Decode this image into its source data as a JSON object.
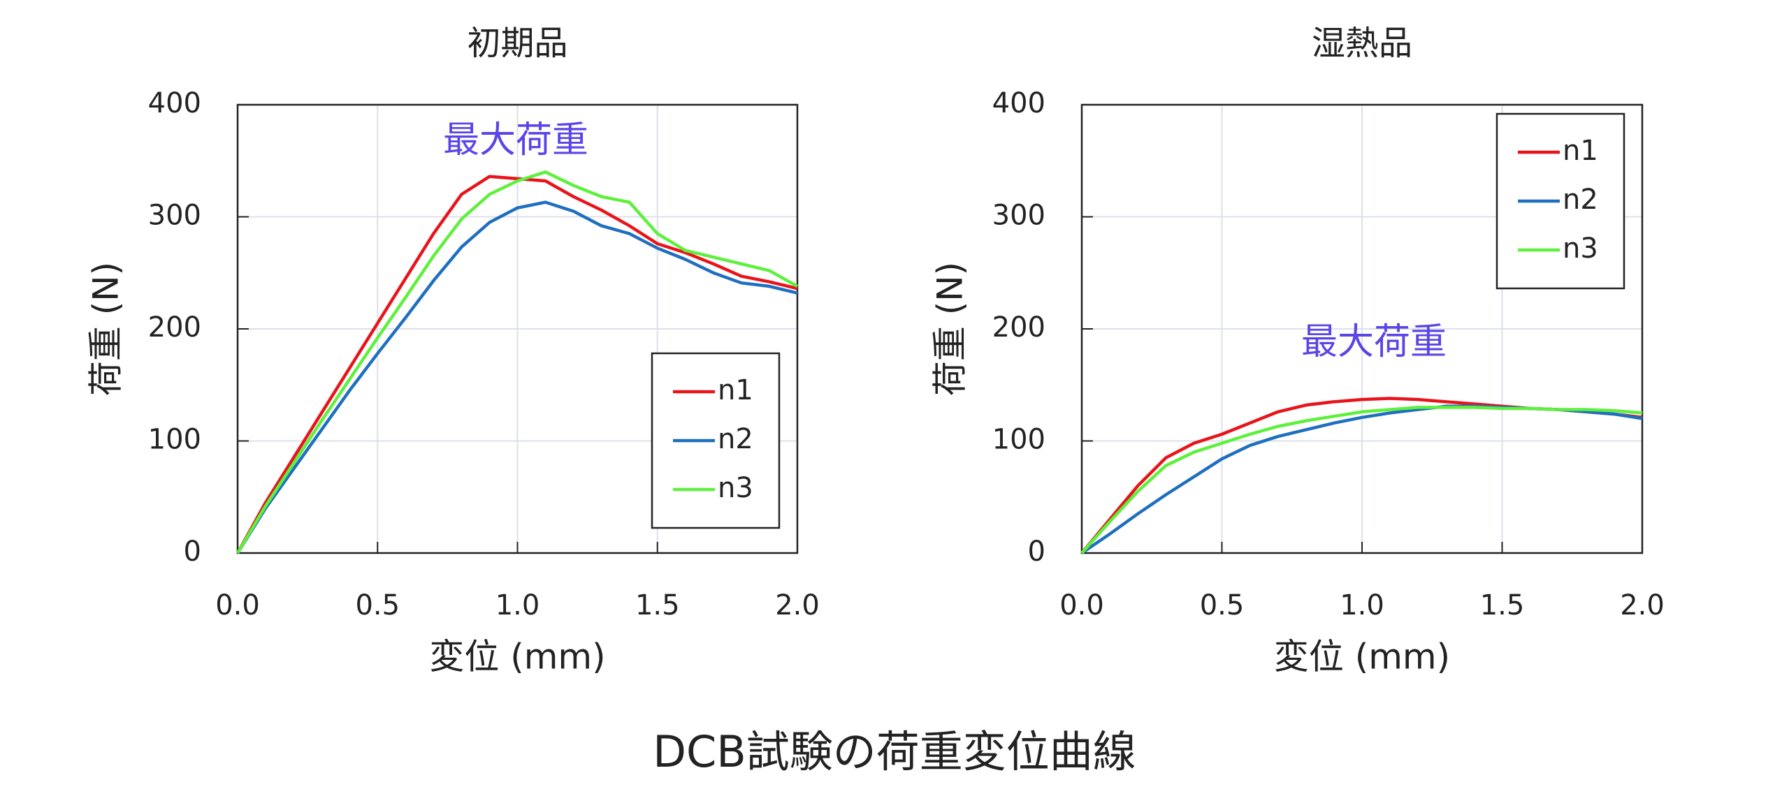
{
  "caption": "DCB試験の荷重変位曲線",
  "chart_data": [
    {
      "type": "line",
      "title": "初期品",
      "xlabel": "変位 (mm)",
      "ylabel": "荷重 (N)",
      "annotation": "最大荷重",
      "x": [
        0,
        0.1,
        0.2,
        0.3,
        0.4,
        0.5,
        0.6,
        0.7,
        0.8,
        0.9,
        1.0,
        1.1,
        1.2,
        1.3,
        1.4,
        1.5,
        1.6,
        1.7,
        1.8,
        1.9,
        2.0
      ],
      "series": [
        {
          "name": "n1",
          "color": "#e8141a",
          "values": [
            0,
            45,
            85,
            125,
            165,
            205,
            245,
            285,
            320,
            336,
            334,
            332,
            318,
            306,
            292,
            276,
            268,
            258,
            247,
            242,
            236
          ]
        },
        {
          "name": "n2",
          "color": "#1f6fc0",
          "values": [
            0,
            40,
            75,
            110,
            145,
            178,
            210,
            243,
            273,
            295,
            308,
            313,
            305,
            292,
            285,
            272,
            262,
            250,
            241,
            238,
            232
          ]
        },
        {
          "name": "n3",
          "color": "#5ef03c",
          "values": [
            0,
            42,
            80,
            118,
            155,
            192,
            228,
            265,
            298,
            320,
            332,
            340,
            328,
            318,
            313,
            285,
            270,
            264,
            258,
            252,
            238
          ]
        }
      ],
      "xlim": [
        0,
        2
      ],
      "ylim": [
        0,
        400
      ],
      "xticks": [
        {
          "value": 0,
          "label": "0.0"
        },
        0.5,
        {
          "value": 1,
          "label": "1.0"
        },
        1.5,
        {
          "value": 2,
          "label": "2.0"
        }
      ],
      "yticks": [
        0,
        100,
        200,
        300,
        400
      ],
      "grid": true,
      "legend": "lower right"
    },
    {
      "type": "line",
      "title": "湿熱品",
      "xlabel": "変位 (mm)",
      "ylabel": "荷重 (N)",
      "annotation": "最大荷重",
      "x": [
        0,
        0.1,
        0.2,
        0.3,
        0.4,
        0.5,
        0.6,
        0.7,
        0.8,
        0.9,
        1.0,
        1.1,
        1.2,
        1.3,
        1.4,
        1.5,
        1.6,
        1.7,
        1.8,
        1.9,
        2.0
      ],
      "series": [
        {
          "name": "n1",
          "color": "#e8141a",
          "values": [
            0,
            30,
            60,
            85,
            98,
            106,
            116,
            126,
            132,
            135,
            137,
            138,
            137,
            135,
            133,
            131,
            129,
            128,
            126,
            124,
            121
          ]
        },
        {
          "name": "n2",
          "color": "#1f6fc0",
          "values": [
            0,
            17,
            35,
            52,
            68,
            84,
            96,
            104,
            110,
            116,
            121,
            125,
            128,
            131,
            131,
            130,
            129,
            128,
            126,
            124,
            120
          ]
        },
        {
          "name": "n3",
          "color": "#5ef03c",
          "values": [
            0,
            28,
            55,
            78,
            90,
            98,
            106,
            113,
            118,
            122,
            126,
            128,
            130,
            130,
            130,
            129,
            129,
            128,
            128,
            127,
            125
          ]
        }
      ],
      "xlim": [
        0,
        2
      ],
      "ylim": [
        0,
        400
      ],
      "xticks": [
        {
          "value": 0,
          "label": "0.0"
        },
        0.5,
        {
          "value": 1,
          "label": "1.0"
        },
        1.5,
        {
          "value": 2,
          "label": "2.0"
        }
      ],
      "yticks": [
        0,
        100,
        200,
        300,
        400
      ],
      "grid": true,
      "legend": "upper right"
    }
  ]
}
